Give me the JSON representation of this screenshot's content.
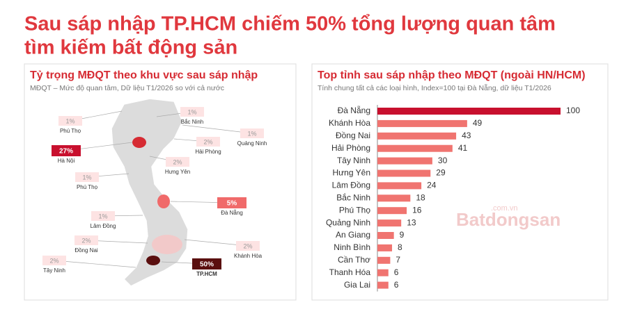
{
  "title": "Sau sáp nhập TP.HCM chiếm 50% tổng lượng quan tâm tìm kiếm bất động sản",
  "watermark": [
    "Batdongsan",
    ".com.vn"
  ],
  "chart_data": [
    {
      "type": "map",
      "title": "Tỷ trọng MĐQT theo khu vực sau sáp nhập",
      "subtitle": "MĐQT – Mức độ quan tâm, Dữ liệu T1/2026 so với cả nước",
      "categories": [
        "Phú Thọ",
        "Bắc Ninh",
        "Quảng Ninh",
        "Hà Nội",
        "Hải Phòng",
        "Hưng Yên",
        "Phú Thọ",
        "Đà Nẵng",
        "Lâm Đồng",
        "Đồng Nai",
        "Khánh Hòa",
        "Tây Ninh",
        "TP.HCM"
      ],
      "values": [
        1,
        1,
        1,
        27,
        2,
        2,
        1,
        5,
        1,
        2,
        2,
        2,
        50
      ],
      "value_labels": [
        "1%",
        "1%",
        "1%",
        "27%",
        "2%",
        "2%",
        "1%",
        "5%",
        "1%",
        "2%",
        "2%",
        "2%",
        "50%"
      ],
      "colors": [
        "#fde3e3",
        "#fde3e3",
        "#fde3e3",
        "#c8102e",
        "#fde3e3",
        "#fde3e3",
        "#fde3e3",
        "#f06a6a",
        "#fde3e3",
        "#fde3e3",
        "#fde3e3",
        "#fde3e3",
        "#5a0f0f"
      ]
    },
    {
      "type": "bar",
      "title": "Top tỉnh sau sáp nhập theo MĐQT (ngoài HN/HCM)",
      "subtitle": "Tính chung tất cả các loại hình, Index=100 tại Đà Nẵng, dữ liệu T1/2026",
      "categories": [
        "Đà Nẵng",
        "Khánh Hòa",
        "Đồng Nai",
        "Hải Phòng",
        "Tây Ninh",
        "Hưng Yên",
        "Lâm Đồng",
        "Bắc Ninh",
        "Phú Thọ",
        "Quảng Ninh",
        "An Giang",
        "Ninh Bình",
        "Cần Thơ",
        "Thanh Hóa",
        "Gia Lai"
      ],
      "values": [
        100,
        49,
        43,
        41,
        30,
        29,
        24,
        18,
        16,
        13,
        9,
        8,
        7,
        6,
        6
      ],
      "xlim": [
        0,
        100
      ],
      "colors": [
        "#c8102e",
        "#f07470",
        "#f07470",
        "#f07470",
        "#f07470",
        "#f07470",
        "#f07470",
        "#f07470",
        "#f07470",
        "#f07470",
        "#f07470",
        "#f07470",
        "#f07470",
        "#f07470",
        "#f07470"
      ]
    }
  ]
}
